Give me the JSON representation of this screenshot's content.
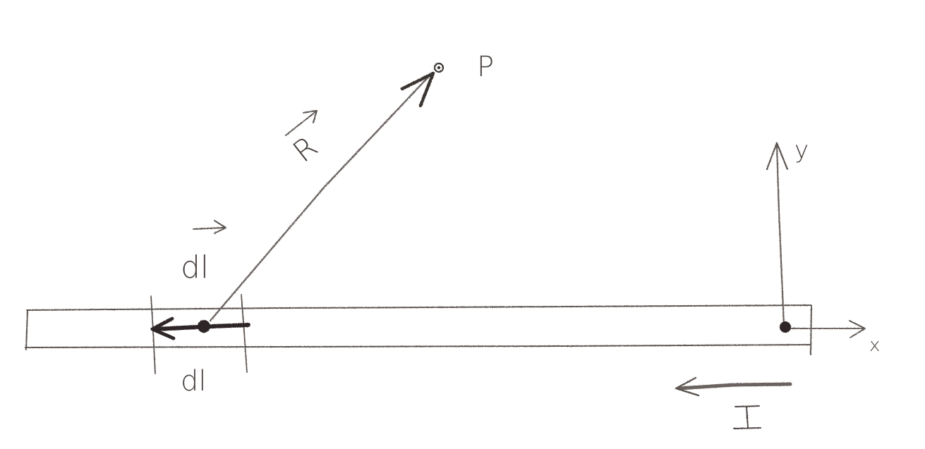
{
  "diagram": {
    "ink_color": "#4a4340",
    "heavy_ink_color": "#2e2826",
    "background": "#ffffff",
    "labels": {
      "point": "P",
      "r_vector": "R",
      "dl_vector": "dl",
      "dl_segment": "dl",
      "current": "I",
      "x_axis": "x",
      "y_axis": "y"
    }
  }
}
